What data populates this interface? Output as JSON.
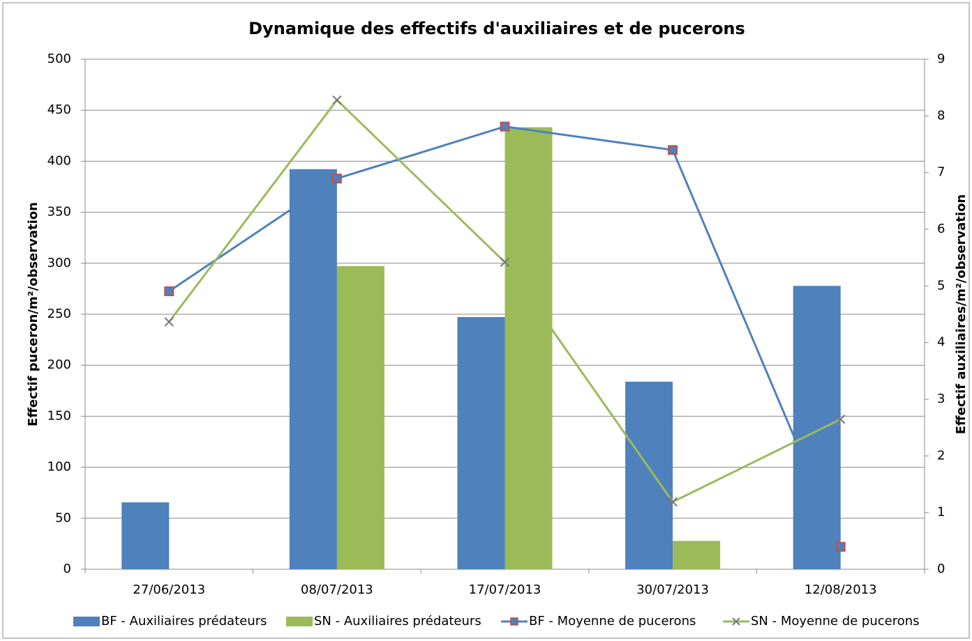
{
  "chart_data": {
    "type": "bar",
    "title": "Dynamique des effectifs d'auxiliaires et de pucerons",
    "y_label": "Effectif puceron/m²/observation",
    "y2_label": "Effectif auxiliaires/m²/observation",
    "categories": [
      "27/06/2013",
      "08/07/2013",
      "17/07/2013",
      "30/07/2013",
      "12/08/2013"
    ],
    "series": [
      {
        "name": "BF - Auxiliaires prédateurs",
        "type": "bar",
        "axis": "y2",
        "color": "#4f81bd",
        "values": [
          1.18,
          7.06,
          4.45,
          3.31,
          5.0
        ]
      },
      {
        "name": "SN - Auxiliaires prédateurs",
        "type": "bar",
        "axis": "y2",
        "color": "#9bbb59",
        "values": [
          0,
          5.35,
          7.8,
          0.5,
          0
        ]
      },
      {
        "name": "BF - Moyenne de pucerons",
        "type": "line",
        "marker": "square",
        "color": "#4f81bd",
        "values": [
          272.5,
          383,
          434,
          411,
          22
        ]
      },
      {
        "name": "SN - Moyenne de pucerons",
        "type": "line",
        "marker": "x",
        "color": "#9bbb59",
        "values": [
          242.5,
          460,
          301,
          66,
          147
        ]
      }
    ],
    "ylim": [
      0,
      500
    ],
    "yticks": [
      0,
      50,
      100,
      150,
      200,
      250,
      300,
      350,
      400,
      450,
      500
    ],
    "y2lim": [
      0,
      9
    ],
    "y2ticks": [
      0,
      1,
      2,
      3,
      4,
      5,
      6,
      7,
      8,
      9
    ],
    "grid": true,
    "legend": "bottom"
  }
}
